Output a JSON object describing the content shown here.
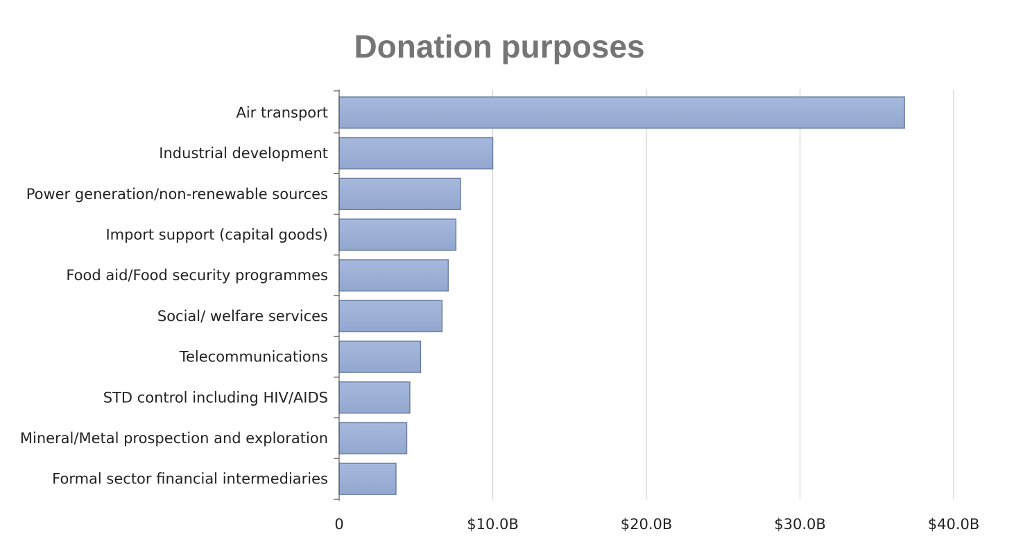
{
  "chart_data": {
    "type": "bar",
    "orientation": "horizontal",
    "title": "Donation purposes",
    "xlabel": "",
    "ylabel": "",
    "categories": [
      "Air transport",
      "Industrial development",
      "Power generation/non-renewable sources",
      "Import support (capital goods)",
      "Food aid/Food security programmes",
      "Social/ welfare services",
      "Telecommunications",
      "STD control including HIV/AIDS",
      "Mineral/Metal prospection and exploration",
      "Formal sector financial intermediaries"
    ],
    "values": [
      36800000000,
      10000000000,
      7900000000,
      7600000000,
      7100000000,
      6700000000,
      5300000000,
      4600000000,
      4400000000,
      3700000000
    ],
    "xlim": [
      0,
      45000000000
    ],
    "x_ticks": [
      0,
      10000000000,
      20000000000,
      30000000000,
      40000000000
    ],
    "x_tick_labels": [
      "0",
      "$10.0B",
      "$20.0B",
      "$30.0B",
      "$40.0B"
    ],
    "grid": true,
    "legend": "none",
    "bar_color": "#9aaed6",
    "bar_border_color": "#6b7fa3",
    "title_color": "#757575"
  }
}
